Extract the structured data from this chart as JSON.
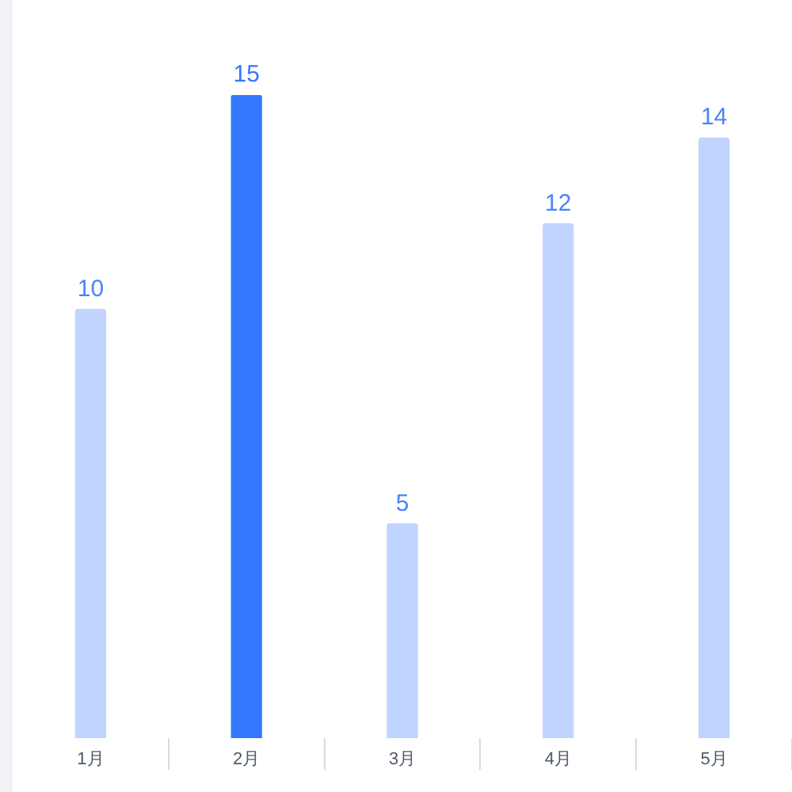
{
  "chart_data": {
    "type": "bar",
    "categories": [
      "1月",
      "2月",
      "3月",
      "4月",
      "5月"
    ],
    "values": [
      10,
      15,
      5,
      12,
      14
    ],
    "colors": [
      "#c0d4fe",
      "#3478fe",
      "#c0d4fe",
      "#c0d4fe",
      "#c0d4fe"
    ],
    "data_labels": true,
    "grid": false,
    "legend": false
  }
}
